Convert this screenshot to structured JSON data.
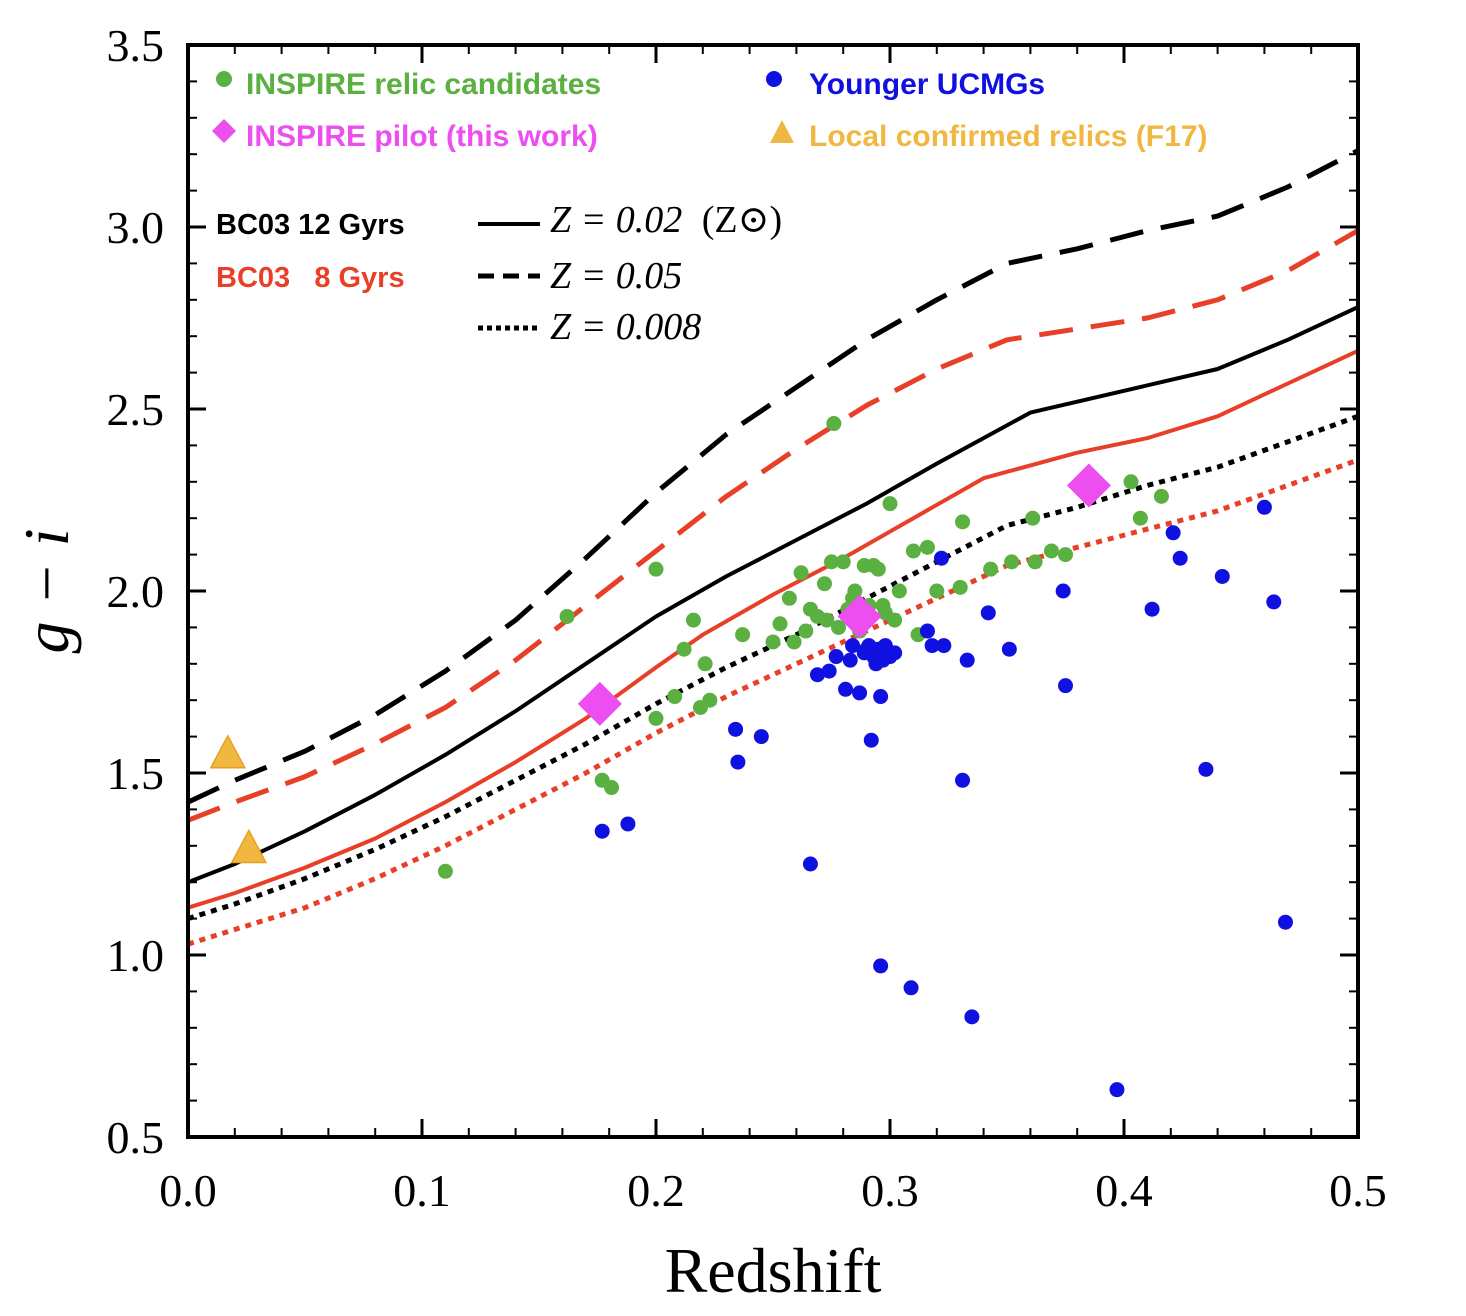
{
  "chart_data": {
    "type": "scatter",
    "xlabel": "Redshift",
    "ylabel": "g − i",
    "xlim": [
      0.0,
      0.5
    ],
    "ylim": [
      0.5,
      3.5
    ],
    "xticks": [
      "0.0",
      "0.1",
      "0.2",
      "0.3",
      "0.4",
      "0.5"
    ],
    "yticks": [
      "0.5",
      "1.0",
      "1.5",
      "2.0",
      "2.5",
      "3.0",
      "3.5"
    ],
    "legend": {
      "position": "top",
      "entries": [
        {
          "label": "INSPIRE relic candidates",
          "color": "#5ab040",
          "marker": "circle"
        },
        {
          "label": "Younger UCMGs",
          "color": "#1010e0",
          "marker": "circle"
        },
        {
          "label": "INSPIRE pilot (this work)",
          "color": "#ec4ef0",
          "marker": "diamond"
        },
        {
          "label": "Local confirmed relics (F17)",
          "color": "#f0b840",
          "marker": "triangle"
        }
      ]
    },
    "model_key": {
      "models": [
        {
          "label": "BC03 12 Gyrs",
          "color": "#000000"
        },
        {
          "label": "BC03   8 Gyrs",
          "color": "#e84028"
        }
      ],
      "linestyles": [
        {
          "style": "solid",
          "metallicity": "Z = 0.02",
          "note": "(Z⊙)"
        },
        {
          "style": "dashed",
          "metallicity": "Z = 0.05",
          "note": ""
        },
        {
          "style": "dotted",
          "metallicity": "Z = 0.008",
          "note": ""
        }
      ]
    },
    "series": [
      {
        "name": "BC03 12 Gyrs Z=0.05",
        "color": "#000000",
        "linestyle": "dashed",
        "x": [
          0.0,
          0.02,
          0.05,
          0.08,
          0.11,
          0.14,
          0.17,
          0.2,
          0.23,
          0.26,
          0.29,
          0.32,
          0.35,
          0.38,
          0.41,
          0.44,
          0.47,
          0.5
        ],
        "y": [
          1.42,
          1.48,
          1.56,
          1.66,
          1.78,
          1.92,
          2.09,
          2.27,
          2.43,
          2.56,
          2.69,
          2.8,
          2.9,
          2.94,
          2.99,
          3.03,
          3.11,
          3.21
        ]
      },
      {
        "name": "BC03 8 Gyrs Z=0.05",
        "color": "#e84028",
        "linestyle": "dashed",
        "x": [
          0.0,
          0.02,
          0.05,
          0.08,
          0.11,
          0.14,
          0.17,
          0.2,
          0.23,
          0.26,
          0.29,
          0.32,
          0.35,
          0.38,
          0.41,
          0.44,
          0.47,
          0.5
        ],
        "y": [
          1.37,
          1.42,
          1.49,
          1.58,
          1.68,
          1.81,
          1.96,
          2.11,
          2.26,
          2.39,
          2.51,
          2.61,
          2.69,
          2.72,
          2.75,
          2.8,
          2.88,
          2.99
        ]
      },
      {
        "name": "BC03 12 Gyrs Z=0.02",
        "color": "#000000",
        "linestyle": "solid",
        "x": [
          0.0,
          0.02,
          0.05,
          0.08,
          0.11,
          0.14,
          0.17,
          0.2,
          0.23,
          0.26,
          0.29,
          0.32,
          0.36,
          0.4,
          0.44,
          0.47,
          0.5
        ],
        "y": [
          1.2,
          1.25,
          1.34,
          1.44,
          1.55,
          1.67,
          1.8,
          1.93,
          2.04,
          2.14,
          2.24,
          2.35,
          2.49,
          2.55,
          2.61,
          2.69,
          2.78
        ]
      },
      {
        "name": "BC03 8 Gyrs Z=0.02",
        "color": "#e84028",
        "linestyle": "solid",
        "x": [
          0.0,
          0.02,
          0.05,
          0.08,
          0.11,
          0.14,
          0.17,
          0.2,
          0.22,
          0.25,
          0.28,
          0.31,
          0.34,
          0.38,
          0.41,
          0.44,
          0.47,
          0.5
        ],
        "y": [
          1.13,
          1.17,
          1.24,
          1.32,
          1.42,
          1.53,
          1.65,
          1.79,
          1.88,
          1.99,
          2.09,
          2.2,
          2.31,
          2.38,
          2.42,
          2.48,
          2.57,
          2.66
        ]
      },
      {
        "name": "BC03 12 Gyrs Z=0.008",
        "color": "#000000",
        "linestyle": "dotted",
        "x": [
          0.0,
          0.02,
          0.05,
          0.08,
          0.11,
          0.14,
          0.17,
          0.2,
          0.23,
          0.26,
          0.29,
          0.32,
          0.35,
          0.38,
          0.41,
          0.44,
          0.47,
          0.5
        ],
        "y": [
          1.1,
          1.14,
          1.21,
          1.29,
          1.38,
          1.48,
          1.58,
          1.69,
          1.79,
          1.88,
          1.98,
          2.08,
          2.18,
          2.23,
          2.29,
          2.34,
          2.41,
          2.48
        ]
      },
      {
        "name": "BC03 8 Gyrs Z=0.008",
        "color": "#e84028",
        "linestyle": "dotted",
        "x": [
          0.0,
          0.02,
          0.05,
          0.08,
          0.11,
          0.14,
          0.17,
          0.2,
          0.23,
          0.26,
          0.29,
          0.32,
          0.35,
          0.38,
          0.41,
          0.44,
          0.47,
          0.5
        ],
        "y": [
          1.03,
          1.07,
          1.13,
          1.21,
          1.3,
          1.4,
          1.5,
          1.61,
          1.71,
          1.8,
          1.89,
          1.98,
          2.07,
          2.12,
          2.17,
          2.22,
          2.29,
          2.36
        ]
      }
    ],
    "scatter": {
      "relic_candidates": {
        "color": "#5ab040",
        "points": [
          [
            0.11,
            1.23
          ],
          [
            0.162,
            1.93
          ],
          [
            0.177,
            1.48
          ],
          [
            0.181,
            1.46
          ],
          [
            0.2,
            2.06
          ],
          [
            0.2,
            1.65
          ],
          [
            0.208,
            1.71
          ],
          [
            0.212,
            1.84
          ],
          [
            0.216,
            1.92
          ],
          [
            0.219,
            1.68
          ],
          [
            0.221,
            1.8
          ],
          [
            0.223,
            1.7
          ],
          [
            0.237,
            1.88
          ],
          [
            0.25,
            1.86
          ],
          [
            0.253,
            1.91
          ],
          [
            0.257,
            1.98
          ],
          [
            0.259,
            1.86
          ],
          [
            0.262,
            2.05
          ],
          [
            0.264,
            1.89
          ],
          [
            0.266,
            1.95
          ],
          [
            0.269,
            1.93
          ],
          [
            0.272,
            2.02
          ],
          [
            0.273,
            1.92
          ],
          [
            0.275,
            2.08
          ],
          [
            0.276,
            2.46
          ],
          [
            0.278,
            1.9
          ],
          [
            0.28,
            2.08
          ],
          [
            0.282,
            1.95
          ],
          [
            0.284,
            1.98
          ],
          [
            0.285,
            2.0
          ],
          [
            0.287,
            1.89
          ],
          [
            0.289,
            2.07
          ],
          [
            0.291,
            1.96
          ],
          [
            0.293,
            2.07
          ],
          [
            0.295,
            2.06
          ],
          [
            0.297,
            1.96
          ],
          [
            0.298,
            1.94
          ],
          [
            0.3,
            2.24
          ],
          [
            0.302,
            1.92
          ],
          [
            0.304,
            2.0
          ],
          [
            0.31,
            2.11
          ],
          [
            0.312,
            1.88
          ],
          [
            0.316,
            2.12
          ],
          [
            0.32,
            2.0
          ],
          [
            0.33,
            2.01
          ],
          [
            0.331,
            2.19
          ],
          [
            0.343,
            2.06
          ],
          [
            0.352,
            2.08
          ],
          [
            0.361,
            2.2
          ],
          [
            0.362,
            2.08
          ],
          [
            0.369,
            2.11
          ],
          [
            0.375,
            2.1
          ],
          [
            0.403,
            2.3
          ],
          [
            0.407,
            2.2
          ],
          [
            0.416,
            2.26
          ]
        ]
      },
      "younger_ucmgs": {
        "color": "#1010e0",
        "points": [
          [
            0.177,
            1.34
          ],
          [
            0.188,
            1.36
          ],
          [
            0.234,
            1.62
          ],
          [
            0.235,
            1.53
          ],
          [
            0.245,
            1.6
          ],
          [
            0.266,
            1.25
          ],
          [
            0.269,
            1.77
          ],
          [
            0.274,
            1.78
          ],
          [
            0.277,
            1.82
          ],
          [
            0.281,
            1.73
          ],
          [
            0.283,
            1.81
          ],
          [
            0.284,
            1.85
          ],
          [
            0.287,
            1.72
          ],
          [
            0.289,
            1.83
          ],
          [
            0.29,
            1.84
          ],
          [
            0.291,
            1.85
          ],
          [
            0.292,
            1.59
          ],
          [
            0.293,
            1.82
          ],
          [
            0.294,
            1.8
          ],
          [
            0.295,
            1.84
          ],
          [
            0.296,
            1.71
          ],
          [
            0.296,
            0.97
          ],
          [
            0.297,
            1.81
          ],
          [
            0.298,
            1.85
          ],
          [
            0.3,
            1.82
          ],
          [
            0.302,
            1.83
          ],
          [
            0.309,
            0.91
          ],
          [
            0.316,
            1.89
          ],
          [
            0.318,
            1.85
          ],
          [
            0.322,
            2.09
          ],
          [
            0.323,
            1.85
          ],
          [
            0.331,
            1.48
          ],
          [
            0.333,
            1.81
          ],
          [
            0.335,
            0.83
          ],
          [
            0.342,
            1.94
          ],
          [
            0.351,
            1.84
          ],
          [
            0.374,
            2.0
          ],
          [
            0.375,
            1.74
          ],
          [
            0.397,
            0.63
          ],
          [
            0.412,
            1.95
          ],
          [
            0.421,
            2.16
          ],
          [
            0.424,
            2.09
          ],
          [
            0.435,
            1.51
          ],
          [
            0.442,
            2.04
          ],
          [
            0.46,
            2.23
          ],
          [
            0.464,
            1.97
          ],
          [
            0.469,
            1.09
          ]
        ]
      },
      "inspire_pilot": {
        "color": "#ec4ef0",
        "points": [
          [
            0.176,
            1.69
          ],
          [
            0.287,
            1.93
          ],
          [
            0.385,
            2.29
          ]
        ]
      },
      "local_relics": {
        "color": "#f0b840",
        "points": [
          [
            0.017,
            1.55
          ],
          [
            0.026,
            1.29
          ]
        ]
      }
    }
  }
}
